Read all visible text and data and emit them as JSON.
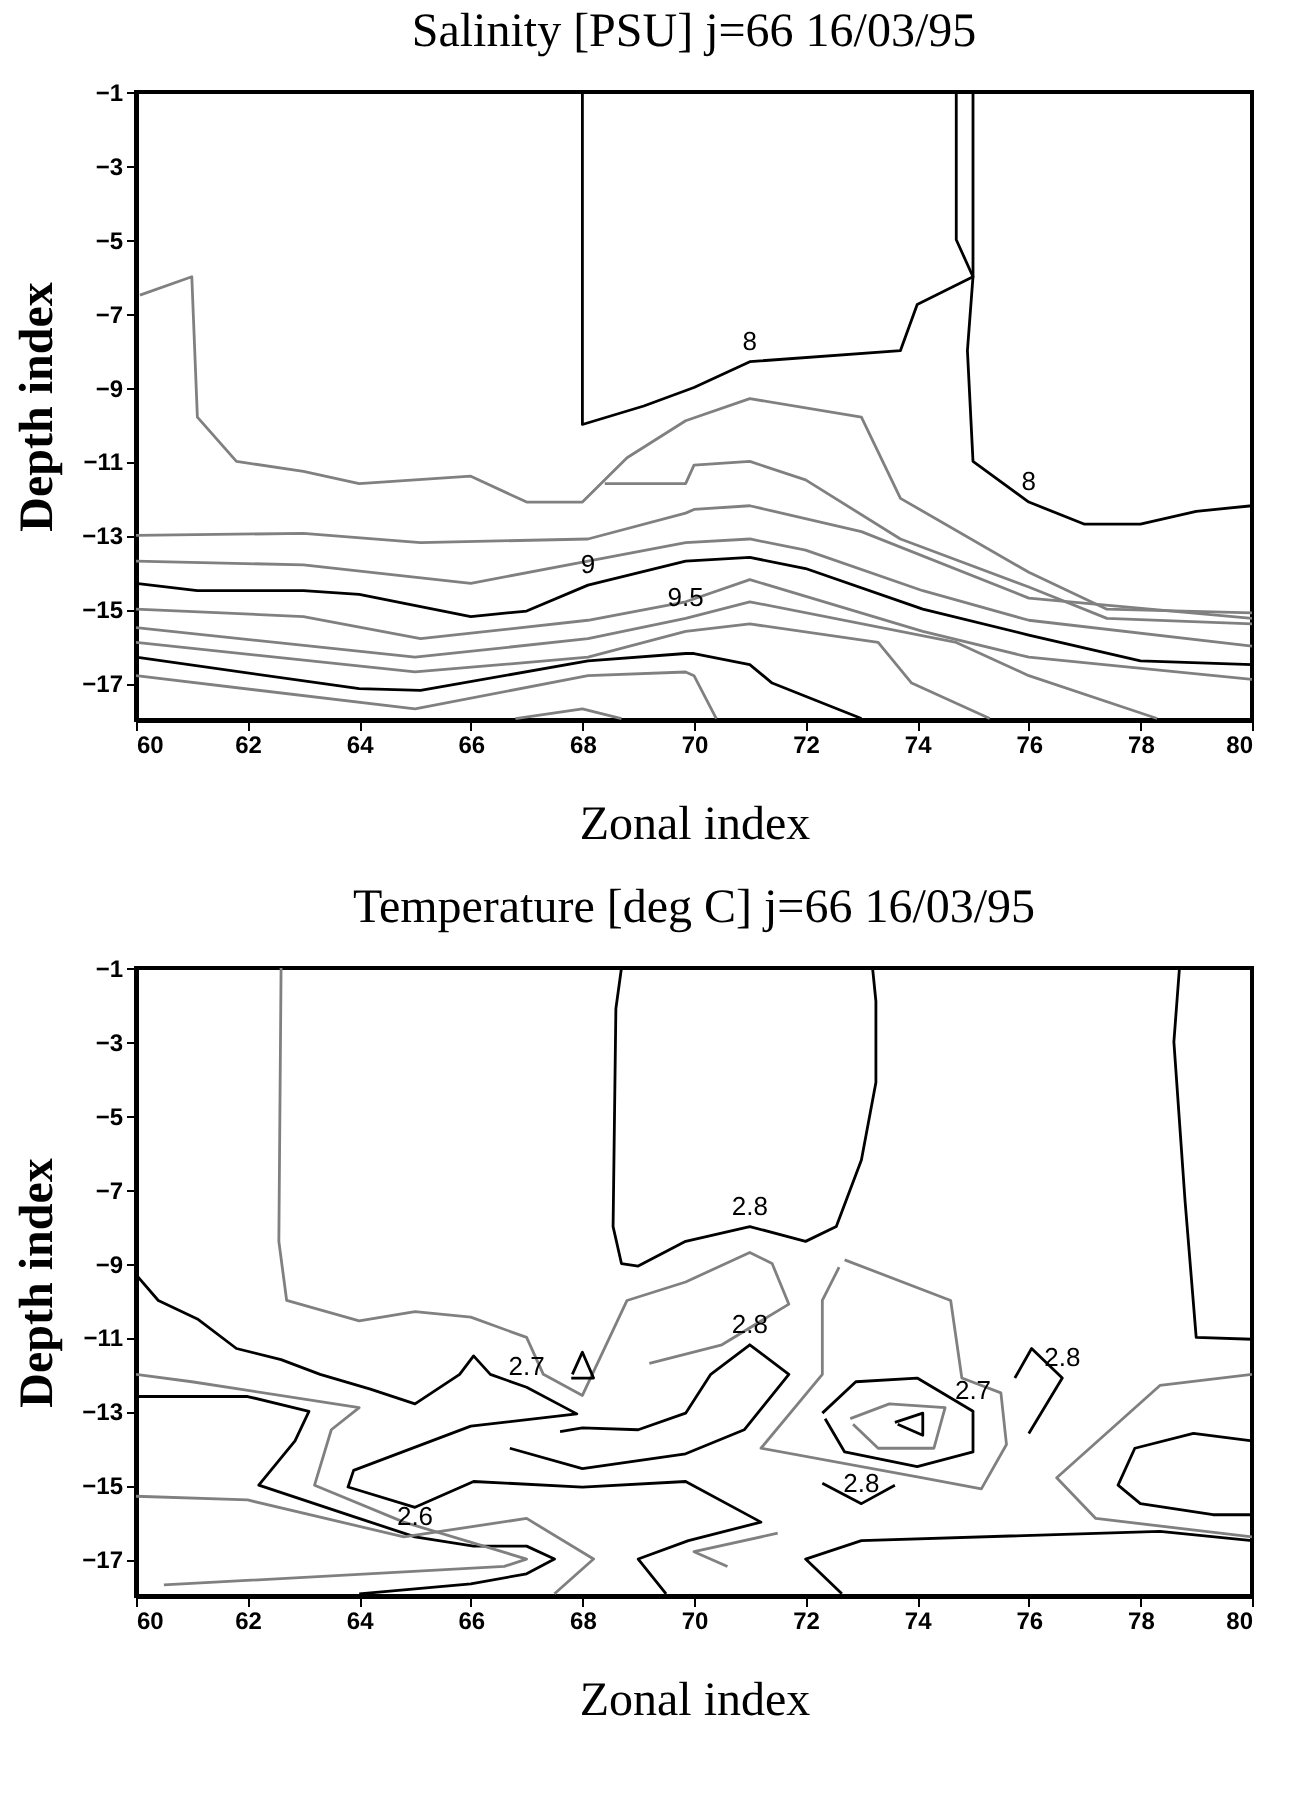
{
  "chart_data": [
    {
      "type": "line",
      "title": "Salinity [PSU]  j=66 16/03/95",
      "xlabel": "Zonal index",
      "ylabel": "Depth index",
      "xlim": [
        60,
        80
      ],
      "ylim": [
        -18,
        -1
      ],
      "xticks": [
        60,
        62,
        64,
        66,
        68,
        70,
        72,
        74,
        76,
        78,
        80
      ],
      "yticks": [
        -1,
        -3,
        -5,
        -7,
        -9,
        -11,
        -13,
        -15,
        -17
      ],
      "series": [
        {
          "name": "8",
          "color": "#000000",
          "x": [
            68,
            68,
            69.1,
            70,
            71,
            73.7,
            74,
            75,
            74.7,
            74.7
          ],
          "values": [
            -1,
            -10,
            -9.5,
            -9,
            -8.3,
            -8,
            -6.75,
            -6,
            -5,
            -1
          ]
        },
        {
          "name": "8",
          "color": "#000000",
          "x": [
            75,
            75,
            74.9,
            75,
            76,
            77,
            78,
            79,
            80
          ],
          "values": [
            -1,
            -6,
            -8,
            -11,
            -12.1,
            -12.7,
            -12.7,
            -12.35,
            -12.2
          ]
        },
        {
          "color": "#808080",
          "x": [
            60.07,
            61,
            61.1,
            61.8,
            63,
            64,
            66,
            67,
            68,
            68.8,
            69.85,
            71,
            73,
            73.7,
            76,
            77.4,
            80
          ],
          "values": [
            -6.5,
            -6,
            -9.8,
            -11,
            -11.27,
            -11.6,
            -11.4,
            -12.1,
            -12.1,
            -10.9,
            -9.9,
            -9.3,
            -9.8,
            -12,
            -14,
            -15,
            -15.1
          ]
        },
        {
          "color": "#808080",
          "x": [
            68.4,
            69.85,
            70,
            71,
            72,
            73.7,
            76,
            77.4,
            80
          ],
          "values": [
            -11.6,
            -11.6,
            -11.1,
            -11,
            -11.5,
            -13.1,
            -14.4,
            -15.25,
            -15.4
          ]
        },
        {
          "color": "#808080",
          "x": [
            60,
            63,
            65.1,
            68.1,
            69.85,
            70,
            71,
            73,
            76,
            80
          ],
          "values": [
            -13,
            -12.95,
            -13.2,
            -13.1,
            -12.4,
            -12.3,
            -12.2,
            -12.9,
            -14.7,
            -15.25
          ]
        },
        {
          "color": "#808080",
          "x": [
            60,
            63,
            66,
            68.1,
            69.85,
            71,
            72,
            74.1,
            76,
            80
          ],
          "values": [
            -13.7,
            -13.8,
            -14.3,
            -13.7,
            -13.2,
            -13.1,
            -13.4,
            -14.5,
            -15.3,
            -16.0
          ]
        },
        {
          "name": "9",
          "color": "#000000",
          "x": [
            60,
            61.1,
            63,
            64,
            66,
            67,
            68.1,
            69.85,
            71,
            72,
            74.1,
            76,
            78,
            80
          ],
          "values": [
            -14.3,
            -14.5,
            -14.5,
            -14.6,
            -15.2,
            -15.05,
            -14.35,
            -13.7,
            -13.6,
            -13.9,
            -15,
            -15.7,
            -16.4,
            -16.5
          ]
        },
        {
          "color": "#808080",
          "x": [
            60,
            63,
            65.1,
            68.1,
            69.85,
            71,
            74.1,
            76,
            80
          ],
          "values": [
            -15,
            -15.2,
            -15.8,
            -15.3,
            -14.8,
            -14.2,
            -15.6,
            -16.3,
            -16.9
          ]
        },
        {
          "name": "9.5",
          "color": "#808080",
          "x": [
            60,
            65,
            68.1,
            69.85,
            71,
            74.7,
            76,
            78.3
          ],
          "values": [
            -15.5,
            -16.3,
            -15.8,
            -15.25,
            -14.8,
            -15.9,
            -16.8,
            -17.96
          ]
        },
        {
          "color": "#808080",
          "x": [
            60,
            65,
            68.1,
            69.85,
            71,
            73.3,
            73.9,
            75.3
          ],
          "values": [
            -15.9,
            -16.7,
            -16.3,
            -15.6,
            -15.4,
            -15.9,
            -17,
            -17.96
          ]
        },
        {
          "color": "#000000",
          "x": [
            60,
            64,
            65.1,
            68.1,
            69.85,
            70,
            71,
            71.4,
            73
          ],
          "values": [
            -16.3,
            -17.15,
            -17.2,
            -16.4,
            -16.2,
            -16.2,
            -16.5,
            -17,
            -17.96
          ]
        },
        {
          "color": "#808080",
          "x": [
            60,
            65,
            68.1,
            69.85,
            70,
            70.4
          ],
          "values": [
            -16.8,
            -17.7,
            -16.8,
            -16.7,
            -16.8,
            -17.96
          ]
        },
        {
          "color": "#808080",
          "x": [
            66.8,
            68,
            68.7
          ],
          "values": [
            -17.96,
            -17.7,
            -17.96
          ]
        }
      ]
    },
    {
      "type": "line",
      "title": "Temperature [deg C]  j=66 16/03/95",
      "xlabel": "Zonal index",
      "ylabel": "Depth index",
      "xlim": [
        60,
        80
      ],
      "ylim": [
        -18,
        -1
      ],
      "xticks": [
        60,
        62,
        64,
        66,
        68,
        70,
        72,
        74,
        76,
        78,
        80
      ],
      "yticks": [
        -1,
        -3,
        -5,
        -7,
        -9,
        -11,
        -13,
        -15,
        -17
      ],
      "series": [
        {
          "name": "2.8",
          "color": "#000000",
          "x": [
            68.7,
            68.6,
            68.55,
            68.7,
            69,
            69.85,
            71,
            72,
            72.55,
            73,
            73.26,
            73.26,
            73.2
          ],
          "values": [
            -1,
            -2.1,
            -8,
            -9,
            -9.07,
            -8.4,
            -8,
            -8.4,
            -8,
            -6.2,
            -4.1,
            -1.9,
            -1
          ]
        },
        {
          "color": "#000000",
          "x": [
            78.7,
            78.6,
            78.8,
            79,
            80
          ],
          "values": [
            -1,
            -3,
            -7.3,
            -11,
            -11.05
          ]
        },
        {
          "color": "#808080",
          "x": [
            62.6,
            62.56,
            62.7,
            64,
            65,
            66,
            67,
            67.3,
            68,
            68.8,
            69.85,
            71,
            71.4,
            71.7,
            70.5,
            69.2
          ],
          "values": [
            -1,
            -8.4,
            -10,
            -10.55,
            -10.3,
            -10.45,
            -11,
            -12,
            -12.57,
            -10,
            -9.5,
            -8.7,
            -9,
            -10.1,
            -11.2,
            -11.7
          ]
        },
        {
          "name": "2.7",
          "color": "#000000",
          "x": [
            60,
            60.4,
            61.1,
            61.8,
            62.6,
            63.3,
            64.2,
            65,
            65.8,
            66.05,
            66.35,
            67,
            67.9,
            66,
            63.9,
            63.8,
            65,
            66.05,
            68,
            69.85,
            71.2,
            69.9,
            69,
            69.5
          ],
          "values": [
            -9.3,
            -10,
            -10.5,
            -11.3,
            -11.6,
            -12,
            -12.4,
            -12.8,
            -12,
            -11.5,
            -12,
            -12.35,
            -13.07,
            -13.4,
            -14.6,
            -15.05,
            -15.6,
            -14.9,
            -15.05,
            -14.9,
            -16,
            -16.5,
            -17,
            -17.94
          ]
        },
        {
          "name": "2.8",
          "color": "#000000",
          "x": [
            66.7,
            68,
            69.85,
            70.9,
            71.7,
            71,
            70.3,
            69.85,
            69,
            68,
            67.6
          ],
          "values": [
            -14,
            -14.55,
            -14.15,
            -13.5,
            -12,
            -11.2,
            -12,
            -13.05,
            -13.5,
            -13.45,
            -13.55
          ]
        },
        {
          "name": "2.6",
          "color": "#000000",
          "x": [
            60,
            62,
            63.1,
            62.85,
            62.2,
            63.9,
            65,
            66.05,
            67,
            67.5,
            67,
            66,
            64
          ],
          "values": [
            -12.6,
            -12.6,
            -13,
            -13.8,
            -15,
            -15.85,
            -16.4,
            -16.65,
            -16.65,
            -17,
            -17.4,
            -17.67,
            -17.94
          ]
        },
        {
          "color": "#000000",
          "x": [
            67.8,
            68.2,
            68,
            67.82
          ],
          "values": [
            -12.1,
            -12.1,
            -11.4,
            -12.0
          ]
        },
        {
          "color": "#808080",
          "x": [
            60,
            61,
            64,
            63.5,
            63.2,
            64.8,
            67,
            66.6,
            60.5
          ],
          "values": [
            -12,
            -12.2,
            -12.9,
            -13.5,
            -15,
            -16,
            -17,
            -17.2,
            -17.7
          ]
        },
        {
          "color": "#808080",
          "x": [
            60,
            62,
            64.8,
            67,
            68.2,
            67.5
          ],
          "values": [
            -15.3,
            -15.4,
            -16.4,
            -15.9,
            -17,
            -17.94
          ]
        },
        {
          "name": "2.7",
          "color": "#000000",
          "x": [
            72.3,
            72.9,
            74,
            75,
            75,
            74,
            72.7,
            72.35
          ],
          "values": [
            -13.05,
            -12.2,
            -12.1,
            -13,
            -14.1,
            -14.5,
            -14.1,
            -13.2
          ]
        },
        {
          "color": "#000000",
          "x": [
            73.6,
            74.1,
            74.1,
            73.65
          ],
          "values": [
            -13.3,
            -13.05,
            -13.65,
            -13.35
          ]
        },
        {
          "color": "#808080",
          "x": [
            72.8,
            73.5,
            74.5,
            74.3,
            73.3,
            72.85
          ],
          "values": [
            -13.2,
            -12.8,
            -12.9,
            -14,
            -14,
            -13.35
          ]
        },
        {
          "name": "2.8",
          "color": "#000000",
          "x": [
            72.3,
            73,
            73.6
          ],
          "values": [
            -14.95,
            -15.5,
            -15
          ]
        },
        {
          "name": "2.8",
          "color": "#000000",
          "x": [
            76,
            76.6,
            76.05,
            75.75
          ],
          "values": [
            -13.6,
            -12.1,
            -11.3,
            -12.1
          ]
        },
        {
          "color": "#000000",
          "x": [
            80,
            78.95,
            77.9,
            77.6,
            78,
            79.3,
            80
          ],
          "values": [
            -13.8,
            -13.6,
            -14,
            -15,
            -15.5,
            -15.8,
            -15.8
          ]
        },
        {
          "color": "#000000",
          "x": [
            80,
            78.35,
            73,
            72,
            72.65
          ],
          "values": [
            -16.5,
            -16.25,
            -16.5,
            -17,
            -17.94
          ]
        },
        {
          "color": "#808080",
          "x": [
            80,
            78.35,
            76.5,
            77.2,
            80
          ],
          "values": [
            -12,
            -12.3,
            -14.8,
            -15.9,
            -16.4
          ]
        },
        {
          "color": "#808080",
          "x": [
            72.7,
            74.6,
            74.8,
            75.5,
            75.6,
            75.15,
            74.1,
            71.2,
            72.3,
            72.3,
            72.6
          ],
          "values": [
            -8.9,
            -10,
            -12.1,
            -12.5,
            -13.9,
            -15.1,
            -14.8,
            -14,
            -12,
            -10,
            -9.1
          ]
        },
        {
          "color": "#808080",
          "x": [
            71.5,
            70,
            70.6
          ],
          "values": [
            -16.3,
            -16.8,
            -17.2
          ]
        }
      ]
    }
  ]
}
